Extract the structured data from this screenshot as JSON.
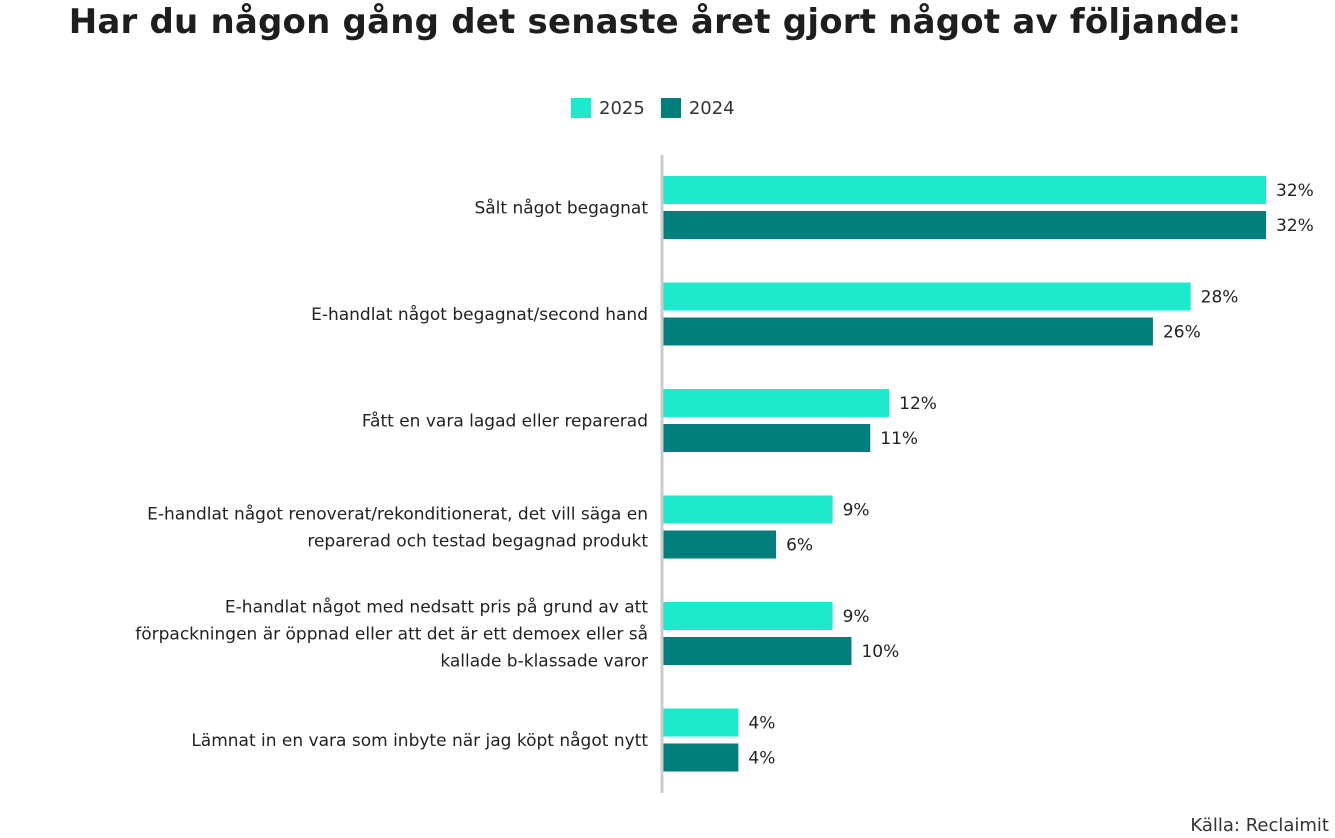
{
  "chart_data": {
    "type": "bar",
    "orientation": "horizontal",
    "title": "Har du någon gång det senaste året gjort något av följande:",
    "categories": [
      [
        "Sålt något begagnat"
      ],
      [
        "E-handlat något begagnat/second hand"
      ],
      [
        "Fått en vara lagad eller reparerad"
      ],
      [
        "E-handlat något renoverat/rekonditionerat, det vill säga en",
        "reparerad och testad begagnad produkt"
      ],
      [
        "E-handlat något med nedsatt pris på grund av att",
        "förpackningen är öppnad eller att det är ett demoex eller så",
        "kallade b-klassade varor"
      ],
      [
        "Lämnat in en vara som inbyte när jag köpt något nytt"
      ]
    ],
    "series": [
      {
        "name": "2025",
        "color": "#1de9cc",
        "values": [
          32,
          28,
          12,
          9,
          9,
          4
        ]
      },
      {
        "name": "2024",
        "color": "#007f7d",
        "values": [
          32,
          26,
          11,
          6,
          10,
          4
        ]
      }
    ],
    "value_suffix": "%",
    "xlim": [
      0,
      32
    ],
    "legend_position": "top-center",
    "grid": false,
    "source": "Källa: Reclaimit"
  }
}
